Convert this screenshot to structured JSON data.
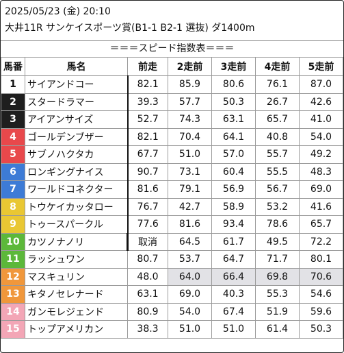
{
  "header": {
    "line1": "2025/05/23 (金) 20:10",
    "line2": "大井11R サンケイスポーツ賞(B1-1 B2-1 選抜) ダ1400m"
  },
  "section_title": "＝＝＝スピード指数表＝＝＝",
  "columns": [
    "馬番",
    "馬名",
    "前走",
    "2走前",
    "3走前",
    "4走前",
    "5走前"
  ],
  "rows": [
    {
      "no": "1",
      "color": "#ffffff",
      "text": "#111111",
      "name": "サイアンドコー",
      "p1": "82.1",
      "p2": "85.9",
      "p3": "80.6",
      "p4": "76.1",
      "p5": "87.0"
    },
    {
      "no": "2",
      "color": "#1e1e1e",
      "text": "#ffffff",
      "name": "スタードラマー",
      "p1": "39.3",
      "p2": "57.7",
      "p3": "50.3",
      "p4": "26.7",
      "p5": "42.6"
    },
    {
      "no": "3",
      "color": "#1e1e1e",
      "text": "#ffffff",
      "name": "アイアンサイズ",
      "p1": "52.7",
      "p2": "74.3",
      "p3": "63.1",
      "p4": "65.7",
      "p5": "41.0"
    },
    {
      "no": "4",
      "color": "#e8484b",
      "text": "#ffffff",
      "name": "ゴールデンブザー",
      "p1": "82.1",
      "p2": "70.4",
      "p3": "64.1",
      "p4": "40.8",
      "p5": "54.0"
    },
    {
      "no": "5",
      "color": "#e8484b",
      "text": "#ffffff",
      "name": "サブノハクタカ",
      "p1": "67.7",
      "p2": "51.0",
      "p3": "57.0",
      "p4": "55.7",
      "p5": "49.2"
    },
    {
      "no": "6",
      "color": "#3d7bd6",
      "text": "#ffffff",
      "name": "ロンギングナイス",
      "p1": "90.7",
      "p2": "73.1",
      "p3": "60.4",
      "p4": "55.5",
      "p5": "48.3"
    },
    {
      "no": "7",
      "color": "#3d7bd6",
      "text": "#ffffff",
      "name": "ワールドコネクター",
      "p1": "81.6",
      "p2": "79.1",
      "p3": "56.9",
      "p4": "56.7",
      "p5": "69.0"
    },
    {
      "no": "8",
      "color": "#e9c733",
      "text": "#ffffff",
      "name": "トウケイカッタロー",
      "p1": "76.7",
      "p2": "42.7",
      "p3": "58.9",
      "p4": "53.2",
      "p5": "41.6"
    },
    {
      "no": "9",
      "color": "#e9c733",
      "text": "#ffffff",
      "name": "トゥースパークル",
      "p1": "77.6",
      "p2": "81.6",
      "p3": "93.4",
      "p4": "78.6",
      "p5": "65.7"
    },
    {
      "no": "10",
      "color": "#5cb83a",
      "text": "#ffffff",
      "name": "カツノナノリ",
      "p1": "取消",
      "p2": "64.5",
      "p3": "61.7",
      "p4": "49.5",
      "p5": "72.2"
    },
    {
      "no": "11",
      "color": "#5cb83a",
      "text": "#ffffff",
      "name": "ラッシュワン",
      "p1": "80.7",
      "p2": "53.7",
      "p3": "64.7",
      "p4": "71.7",
      "p5": "80.1"
    },
    {
      "no": "12",
      "color": "#f0973b",
      "text": "#ffffff",
      "name": "マスキュリン",
      "p1": "48.0",
      "p2": "64.0",
      "p3": "66.4",
      "p4": "69.8",
      "p5": "70.6"
    },
    {
      "no": "13",
      "color": "#f0973b",
      "text": "#ffffff",
      "name": "キタノセレナード",
      "p1": "63.1",
      "p2": "69.0",
      "p3": "40.3",
      "p4": "55.3",
      "p5": "54.6"
    },
    {
      "no": "14",
      "color": "#f3a6b6",
      "text": "#ffffff",
      "name": "ガンモレジェンド",
      "p1": "80.9",
      "p2": "54.0",
      "p3": "67.4",
      "p4": "51.9",
      "p5": "59.6"
    },
    {
      "no": "15",
      "color": "#f3a6b6",
      "text": "#ffffff",
      "name": "トップアメリカン",
      "p1": "38.3",
      "p2": "51.0",
      "p3": "51.0",
      "p4": "61.4",
      "p5": "50.3"
    }
  ]
}
